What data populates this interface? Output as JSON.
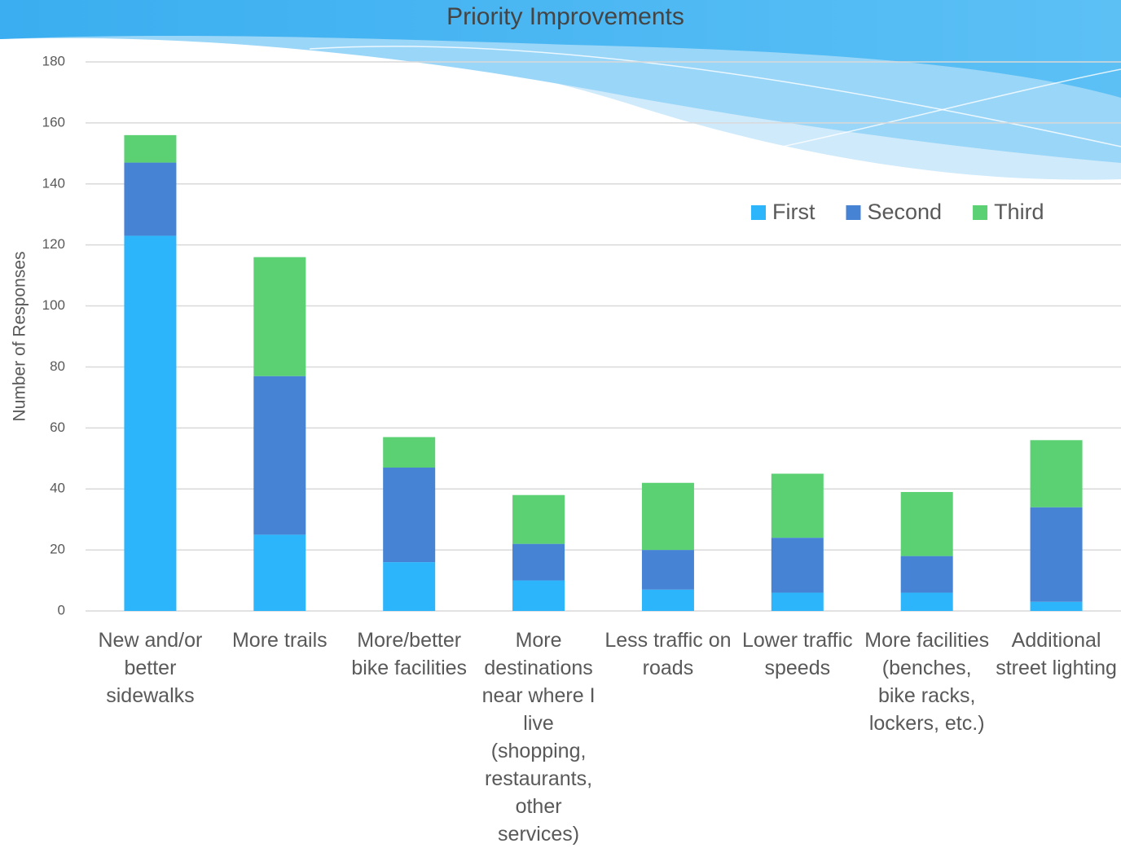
{
  "chart_data": {
    "type": "stacked_bar",
    "title": "Priority Improvements",
    "y_label": "Number of Responses",
    "categories": [
      "New and/or better sidewalks",
      "More trails",
      "More/better bike facilities",
      "More destinations near where I live (shopping, restaurants, other services)",
      "Less traffic on roads",
      "Lower traffic speeds",
      "More facilities (benches, bike racks, lockers, etc.)",
      "Additional street lighting"
    ],
    "series": [
      {
        "name": "First",
        "color": "#2db5fc",
        "values": [
          123,
          25,
          16,
          10,
          7,
          6,
          6,
          3
        ]
      },
      {
        "name": "Second",
        "color": "#4683d4",
        "values": [
          24,
          52,
          31,
          12,
          13,
          18,
          12,
          31
        ]
      },
      {
        "name": "Third",
        "color": "#5bd174",
        "values": [
          9,
          39,
          10,
          16,
          22,
          21,
          21,
          22
        ]
      }
    ],
    "ylim": [
      0,
      180
    ],
    "yticks": [
      0,
      20,
      40,
      60,
      80,
      100,
      120,
      140,
      160,
      180
    ],
    "grid": true,
    "legend": "top-right"
  }
}
